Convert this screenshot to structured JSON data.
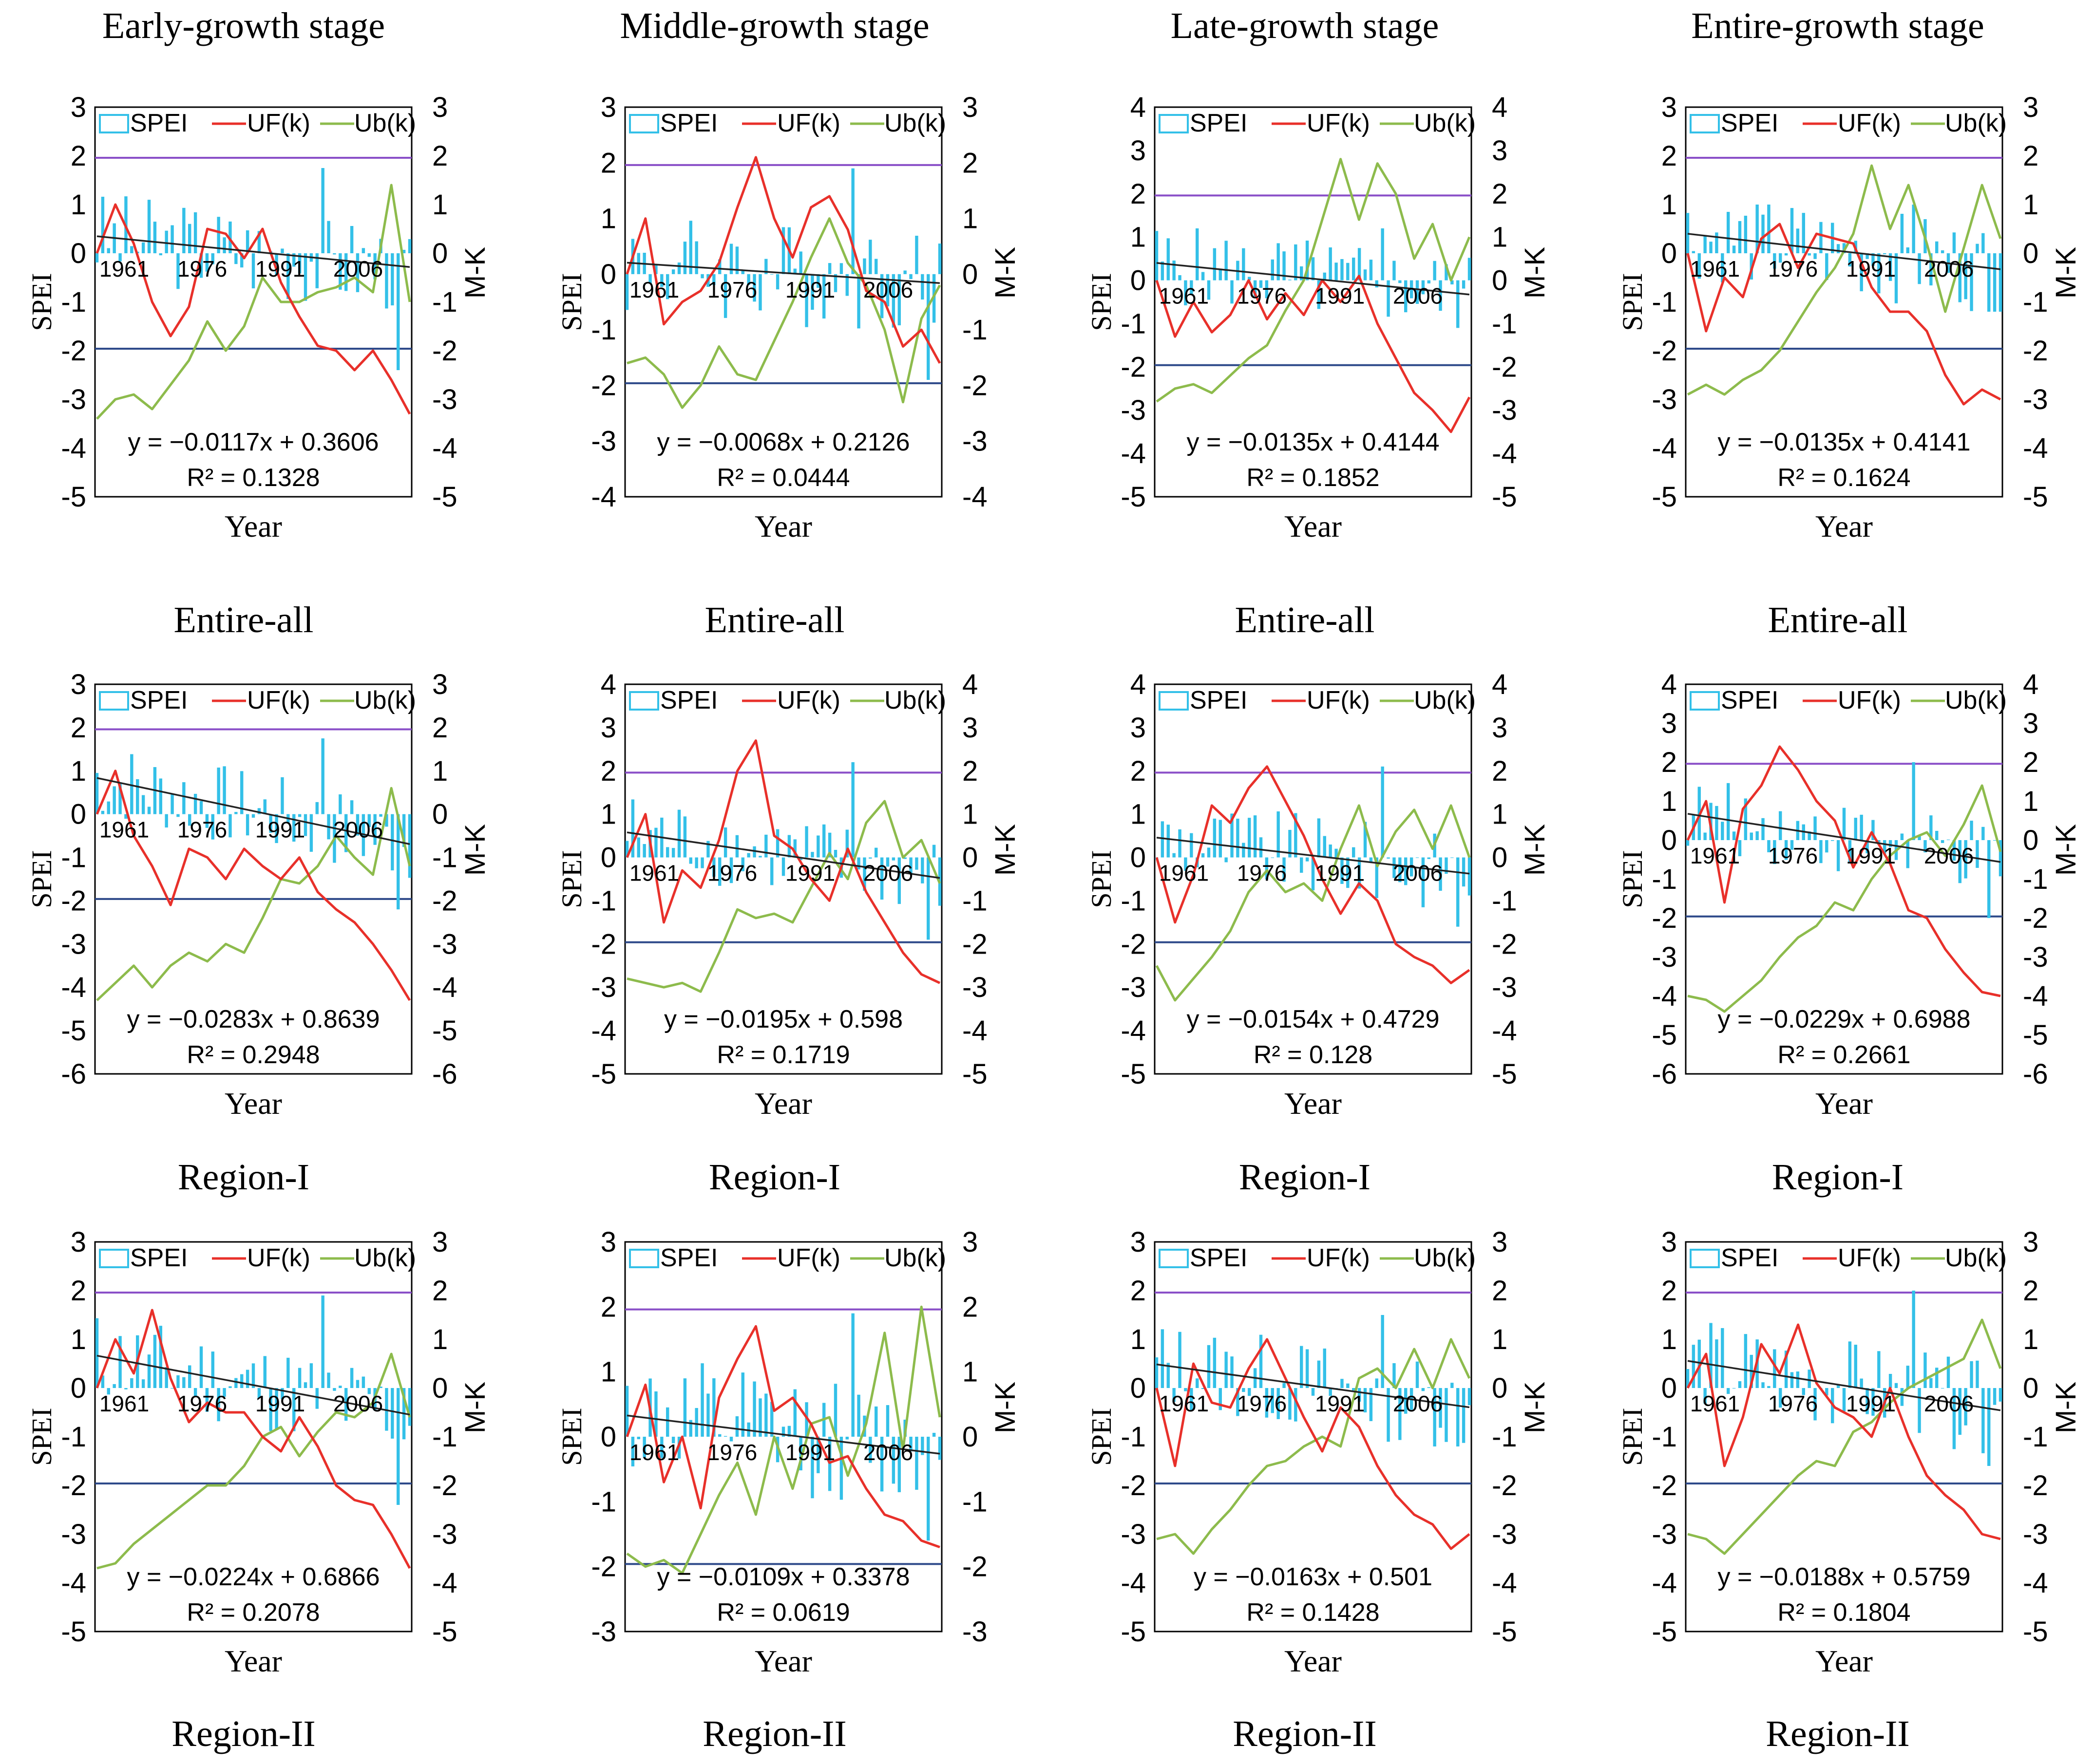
{
  "column_headers": [
    "Early-growth stage",
    "Middle-growth stage",
    "Late-growth stage",
    "Entire-growth stage"
  ],
  "row_captions": [
    "Entire-all",
    "Region-I",
    "Region-II"
  ],
  "colors": {
    "spei_bar": "#33C0E8",
    "uf_line": "#E8302A",
    "ub_line": "#8DBB4C",
    "upper_threshold": "#8A4FC8",
    "lower_threshold": "#2E4A8A",
    "trend_line": "#222222"
  },
  "chart_data": [
    {
      "type": "bar+line",
      "row": 0,
      "col": 0,
      "caption": "Entire-all",
      "xlabel": "Year",
      "ylabel": "SPEI",
      "y2label": "M-K",
      "xticks": [
        "1961",
        "1976",
        "1991",
        "2006"
      ],
      "ylim": [
        -5,
        3
      ],
      "y2lim": [
        -5,
        3
      ],
      "legend": [
        "SPEI",
        "UF(k)",
        "Ub(k)"
      ],
      "equation": "y = −0.0117x + 0.3606",
      "r2": "R² = 0.1328",
      "slope": -0.0117,
      "intercept": 0.3606,
      "spei_range": [
        -2.4,
        1.75
      ],
      "uf": [
        0,
        1.0,
        0.2,
        -1.0,
        -1.7,
        -1.1,
        0.5,
        0.4,
        -0.1,
        0.5,
        -0.6,
        -1.3,
        -1.9,
        -2.0,
        -2.4,
        -2.0,
        -2.6,
        -3.3
      ],
      "ub": [
        -3.4,
        -3.0,
        -2.9,
        -3.2,
        -2.7,
        -2.2,
        -1.4,
        -2.0,
        -1.5,
        -0.5,
        -1.0,
        -1.0,
        -0.8,
        -0.7,
        -0.5,
        -0.8,
        1.4,
        -1.0
      ]
    },
    {
      "type": "bar+line",
      "row": 0,
      "col": 1,
      "caption": "Entire-all",
      "xlabel": "Year",
      "ylabel": "SPEI",
      "y2label": "M-K",
      "xticks": [
        "1961",
        "1976",
        "1991",
        "2006"
      ],
      "ylim": [
        -4,
        3
      ],
      "y2lim": [
        -4,
        3
      ],
      "legend": [
        "SPEI",
        "UF(k)",
        "Ub(k)"
      ],
      "equation": "y = −0.0068x + 0.2126",
      "r2": "R² = 0.0444",
      "slope": -0.0068,
      "intercept": 0.2126,
      "spei_range": [
        -1.9,
        1.9
      ],
      "uf": [
        0,
        1.0,
        -0.9,
        -0.5,
        -0.3,
        0.2,
        1.2,
        2.1,
        1.0,
        0.3,
        1.2,
        1.4,
        0.8,
        -0.3,
        -0.5,
        -1.3,
        -1.0,
        -1.6
      ],
      "ub": [
        -1.6,
        -1.5,
        -1.8,
        -2.4,
        -2.0,
        -1.3,
        -1.8,
        -1.9,
        -1.2,
        -0.5,
        0.3,
        1.0,
        0.2,
        -0.2,
        -1.0,
        -2.3,
        -0.8,
        -0.2
      ]
    },
    {
      "type": "bar+line",
      "row": 0,
      "col": 2,
      "caption": "Entire-all",
      "xlabel": "Year",
      "ylabel": "SPEI",
      "y2label": "M-K",
      "xticks": [
        "1961",
        "1976",
        "1991",
        "2006"
      ],
      "ylim": [
        -5,
        4
      ],
      "y2lim": [
        -5,
        4
      ],
      "legend": [
        "SPEI",
        "UF(k)",
        "Ub(k)"
      ],
      "equation": "y = −0.0135x + 0.4144",
      "r2": "R² = 0.1852",
      "slope": -0.0135,
      "intercept": 0.4144,
      "spei_range": [
        -1.1,
        1.2
      ],
      "uf": [
        0,
        -1.3,
        -0.5,
        -1.2,
        -0.8,
        0.0,
        -0.9,
        -0.3,
        -0.8,
        0.0,
        -0.5,
        0.1,
        -1.0,
        -1.8,
        -2.6,
        -3.0,
        -3.5,
        -2.7
      ],
      "ub": [
        -2.8,
        -2.5,
        -2.4,
        -2.6,
        -2.2,
        -1.8,
        -1.5,
        -0.7,
        0.0,
        1.4,
        2.8,
        1.4,
        2.7,
        2.0,
        0.5,
        1.3,
        0.0,
        1.0
      ]
    },
    {
      "type": "bar+line",
      "row": 0,
      "col": 3,
      "caption": "Entire-all",
      "xlabel": "Year",
      "ylabel": "SPEI",
      "y2label": "M-K",
      "xticks": [
        "1961",
        "1976",
        "1991",
        "2006"
      ],
      "ylim": [
        -5,
        3
      ],
      "y2lim": [
        -5,
        3
      ],
      "legend": [
        "SPEI",
        "UF(k)",
        "Ub(k)"
      ],
      "equation": "y = −0.0135x + 0.4141",
      "r2": "R² = 0.1624",
      "slope": -0.0135,
      "intercept": 0.4141,
      "spei_range": [
        -1.2,
        1.0
      ],
      "uf": [
        0,
        -1.6,
        -0.5,
        -0.9,
        0.3,
        0.6,
        -0.3,
        0.4,
        0.3,
        0.2,
        -0.7,
        -1.2,
        -1.2,
        -1.6,
        -2.5,
        -3.1,
        -2.8,
        -3.0
      ],
      "ub": [
        -2.9,
        -2.7,
        -2.9,
        -2.6,
        -2.4,
        -2.0,
        -1.4,
        -0.8,
        -0.3,
        0.4,
        1.8,
        0.5,
        1.4,
        0.2,
        -1.2,
        0.1,
        1.4,
        0.3
      ]
    },
    {
      "type": "bar+line",
      "row": 1,
      "col": 0,
      "caption": "Region-I",
      "xlabel": "Year",
      "ylabel": "SPEI",
      "y2label": "M-K",
      "xticks": [
        "1961",
        "1976",
        "1991",
        "2006"
      ],
      "ylim": [
        -6,
        3
      ],
      "y2lim": [
        -6,
        3
      ],
      "legend": [
        "SPEI",
        "UF(k)",
        "Ub(k)"
      ],
      "equation": "y = −0.0283x + 0.8639",
      "r2": "R² = 0.2948",
      "slope": -0.0283,
      "intercept": 0.8639,
      "spei_range": [
        -2.2,
        1.75
      ],
      "uf": [
        0,
        1.0,
        -0.5,
        -1.2,
        -2.1,
        -0.8,
        -1.0,
        -1.5,
        -0.8,
        -1.2,
        -1.5,
        -1.0,
        -1.8,
        -2.2,
        -2.5,
        -3.0,
        -3.6,
        -4.3
      ],
      "ub": [
        -4.3,
        -3.9,
        -3.5,
        -4.0,
        -3.5,
        -3.2,
        -3.4,
        -3.0,
        -3.2,
        -2.4,
        -1.5,
        -1.6,
        -1.2,
        -0.5,
        -1.0,
        -1.4,
        0.6,
        -1.2
      ]
    },
    {
      "type": "bar+line",
      "row": 1,
      "col": 1,
      "caption": "Region-I",
      "xlabel": "Year",
      "ylabel": "SPEI",
      "y2label": "M-K",
      "xticks": [
        "1961",
        "1976",
        "1991",
        "2006"
      ],
      "ylim": [
        -5,
        4
      ],
      "y2lim": [
        -5,
        4
      ],
      "legend": [
        "SPEI",
        "UF(k)",
        "Ub(k)"
      ],
      "equation": "y = −0.0195x + 0.598",
      "r2": "R² = 0.1719",
      "slope": -0.0195,
      "intercept": 0.598,
      "spei_range": [
        -1.9,
        2.2
      ],
      "uf": [
        0,
        1.0,
        -1.5,
        -0.3,
        -0.7,
        0.4,
        2.0,
        2.7,
        0.5,
        0.2,
        -0.5,
        -1.0,
        0.2,
        -0.8,
        -1.5,
        -2.2,
        -2.7,
        -2.9
      ],
      "ub": [
        -2.8,
        -2.9,
        -3.0,
        -2.9,
        -3.1,
        -2.2,
        -1.2,
        -1.4,
        -1.3,
        -1.5,
        -0.7,
        0.1,
        -0.5,
        0.8,
        1.3,
        0.0,
        0.4,
        -0.6
      ]
    },
    {
      "type": "bar+line",
      "row": 1,
      "col": 2,
      "caption": "Region-I",
      "xlabel": "Year",
      "ylabel": "SPEI",
      "y2label": "M-K",
      "xticks": [
        "1961",
        "1976",
        "1991",
        "2006"
      ],
      "ylim": [
        -5,
        4
      ],
      "y2lim": [
        -5,
        4
      ],
      "legend": [
        "SPEI",
        "UF(k)",
        "Ub(k)"
      ],
      "equation": "y = −0.0154x + 0.4729",
      "r2": "R² = 0.128",
      "slope": -0.0154,
      "intercept": 0.4729,
      "spei_range": [
        -1.6,
        2.1
      ],
      "uf": [
        0,
        -1.5,
        -0.4,
        1.2,
        0.8,
        1.6,
        2.1,
        1.3,
        0.5,
        -0.5,
        -1.3,
        -0.6,
        -1.0,
        -2.0,
        -2.3,
        -2.5,
        -2.9,
        -2.6
      ],
      "ub": [
        -2.5,
        -3.3,
        -2.8,
        -2.3,
        -1.7,
        -0.8,
        -0.3,
        -0.8,
        -0.6,
        -1.0,
        0.2,
        1.2,
        -0.2,
        0.6,
        1.1,
        0.2,
        1.2,
        0.0
      ]
    },
    {
      "type": "bar+line",
      "row": 1,
      "col": 3,
      "caption": "Region-I",
      "xlabel": "Year",
      "ylabel": "SPEI",
      "y2label": "M-K",
      "xticks": [
        "1961",
        "1976",
        "1991",
        "2006"
      ],
      "ylim": [
        -6,
        4
      ],
      "y2lim": [
        -6,
        4
      ],
      "legend": [
        "SPEI",
        "UF(k)",
        "Ub(k)"
      ],
      "equation": "y = −0.0229x + 0.6988",
      "r2": "R² = 0.2661",
      "slope": -0.0229,
      "intercept": 0.6988,
      "spei_range": [
        -2.0,
        2.0
      ],
      "uf": [
        0,
        1.0,
        -1.6,
        0.8,
        1.4,
        2.4,
        1.8,
        1.0,
        0.5,
        -0.7,
        0.2,
        -0.6,
        -1.8,
        -2.0,
        -2.8,
        -3.4,
        -3.9,
        -4.0
      ],
      "ub": [
        -4.0,
        -4.1,
        -4.4,
        -4.0,
        -3.6,
        -3.0,
        -2.5,
        -2.2,
        -1.6,
        -1.8,
        -1.0,
        -0.4,
        0.0,
        0.2,
        -0.4,
        0.4,
        1.4,
        -0.3
      ]
    },
    {
      "type": "bar+line",
      "row": 2,
      "col": 0,
      "caption": "Region-II",
      "xlabel": "Year",
      "ylabel": "SPEI",
      "y2label": "M-K",
      "xticks": [
        "1961",
        "1976",
        "1991",
        "2006"
      ],
      "ylim": [
        -5,
        3
      ],
      "y2lim": [
        -5,
        3
      ],
      "legend": [
        "SPEI",
        "UF(k)",
        "Ub(k)"
      ],
      "equation": "y = −0.0224x + 0.6866",
      "r2": "R² = 0.2078",
      "slope": -0.0224,
      "intercept": 0.6866,
      "spei_range": [
        -2.4,
        1.9
      ],
      "uf": [
        0,
        1.0,
        0.3,
        1.6,
        0.2,
        -0.7,
        -0.3,
        -0.5,
        -0.5,
        -1.0,
        -1.3,
        -0.6,
        -1.2,
        -2.0,
        -2.3,
        -2.4,
        -3.0,
        -3.7
      ],
      "ub": [
        -3.7,
        -3.6,
        -3.2,
        -2.9,
        -2.6,
        -2.3,
        -2.0,
        -2.0,
        -1.6,
        -1.0,
        -0.8,
        -1.4,
        -0.9,
        -0.5,
        -0.6,
        -0.3,
        0.7,
        -0.6
      ]
    },
    {
      "type": "bar+line",
      "row": 2,
      "col": 1,
      "caption": "Region-II",
      "xlabel": "Year",
      "ylabel": "SPEI",
      "y2label": "M-K",
      "xticks": [
        "1961",
        "1976",
        "1991",
        "2006"
      ],
      "ylim": [
        -3,
        3
      ],
      "y2lim": [
        -3,
        3
      ],
      "legend": [
        "SPEI",
        "UF(k)",
        "Ub(k)"
      ],
      "equation": "y = −0.0109x + 0.3378",
      "r2": "R² = 0.0619",
      "slope": -0.0109,
      "intercept": 0.3378,
      "spei_range": [
        -1.6,
        1.9
      ],
      "uf": [
        0,
        0.8,
        -0.7,
        0.0,
        -1.1,
        0.6,
        1.2,
        1.7,
        0.4,
        0.6,
        0.2,
        -0.4,
        -0.3,
        -0.8,
        -1.2,
        -1.3,
        -1.6,
        -1.7
      ],
      "ub": [
        -1.8,
        -2.0,
        -1.9,
        -2.1,
        -1.5,
        -0.9,
        -0.4,
        -1.2,
        0.0,
        -0.8,
        0.2,
        0.3,
        -0.6,
        0.2,
        1.6,
        -0.2,
        2.0,
        0.3
      ]
    },
    {
      "type": "bar+line",
      "row": 2,
      "col": 2,
      "caption": "Region-II",
      "xlabel": "Year",
      "ylabel": "SPEI",
      "y2label": "M-K",
      "xticks": [
        "1961",
        "1976",
        "1991",
        "2006"
      ],
      "ylim": [
        -5,
        3
      ],
      "y2lim": [
        -5,
        3
      ],
      "legend": [
        "SPEI",
        "UF(k)",
        "Ub(k)"
      ],
      "equation": "y = −0.0163x + 0.501",
      "r2": "R² = 0.1428",
      "slope": -0.0163,
      "intercept": 0.501,
      "spei_range": [
        -1.2,
        1.5
      ],
      "uf": [
        0,
        -1.6,
        0.5,
        -0.3,
        -0.4,
        0.4,
        1.0,
        0.2,
        -0.6,
        -1.3,
        -0.4,
        -0.8,
        -1.6,
        -2.2,
        -2.6,
        -2.8,
        -3.3,
        -3.0
      ],
      "ub": [
        -3.1,
        -3.0,
        -3.4,
        -2.9,
        -2.5,
        -2.0,
        -1.6,
        -1.5,
        -1.2,
        -1.0,
        -1.2,
        0.2,
        0.4,
        0.0,
        0.8,
        0.0,
        1.0,
        0.2
      ]
    },
    {
      "type": "bar+line",
      "row": 2,
      "col": 3,
      "caption": "Region-II",
      "xlabel": "Year",
      "ylabel": "SPEI",
      "y2label": "M-K",
      "xticks": [
        "1961",
        "1976",
        "1991",
        "2006"
      ],
      "ylim": [
        -5,
        3
      ],
      "y2lim": [
        -5,
        3
      ],
      "legend": [
        "SPEI",
        "UF(k)",
        "Ub(k)"
      ],
      "equation": "y = −0.0188x + 0.5759",
      "r2": "R² = 0.1804",
      "slope": -0.0188,
      "intercept": 0.5759,
      "spei_range": [
        -1.6,
        2.0
      ],
      "uf": [
        0,
        0.7,
        -1.6,
        -0.6,
        0.9,
        0.3,
        1.3,
        0.1,
        -0.4,
        -0.6,
        -1.0,
        0.0,
        -1.0,
        -1.8,
        -2.2,
        -2.5,
        -3.0,
        -3.1
      ],
      "ub": [
        -3.0,
        -3.1,
        -3.4,
        -3.0,
        -2.6,
        -2.2,
        -1.8,
        -1.5,
        -1.6,
        -0.9,
        -0.7,
        -0.3,
        0.0,
        0.2,
        0.4,
        0.6,
        1.4,
        0.4
      ]
    }
  ]
}
